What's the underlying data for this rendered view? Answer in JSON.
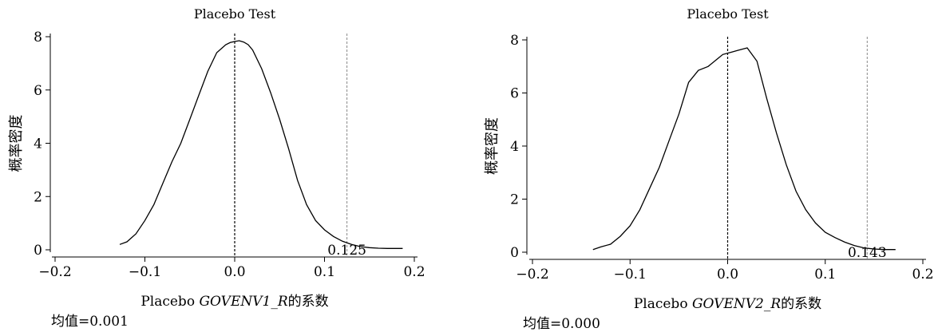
{
  "chart_data": [
    {
      "type": "line",
      "title": "Placebo Test",
      "xlabel_prefix": "Placebo ",
      "xlabel_var": "GOVENV1_R",
      "xlabel_suffix": "的系数",
      "ylabel": "概率密度",
      "xlim": [
        -0.2,
        0.2
      ],
      "ylim": [
        0,
        8
      ],
      "xticks": [
        -0.2,
        -0.1,
        0.0,
        0.1,
        0.2
      ],
      "xtick_labels": [
        "−0.2",
        "−0.1",
        "0.0",
        "0.1",
        "0.2"
      ],
      "yticks": [
        0,
        2,
        4,
        6,
        8
      ],
      "ytick_labels": [
        "0",
        "2",
        "4",
        "6",
        "8"
      ],
      "reference_zero": 0.0,
      "actual_coef": 0.125,
      "actual_label": "0.125",
      "mean_text": "均值=0.001",
      "series": [
        {
          "x": [
            -0.128,
            -0.12,
            -0.11,
            -0.1,
            -0.09,
            -0.08,
            -0.07,
            -0.06,
            -0.05,
            -0.04,
            -0.03,
            -0.02,
            -0.01,
            -0.005,
            0.0,
            0.005,
            0.01,
            0.015,
            0.02,
            0.03,
            0.04,
            0.05,
            0.06,
            0.07,
            0.08,
            0.09,
            0.1,
            0.11,
            0.12,
            0.13,
            0.14,
            0.15,
            0.16,
            0.17,
            0.18,
            0.187
          ],
          "y": [
            0.2,
            0.3,
            0.6,
            1.1,
            1.7,
            2.5,
            3.3,
            4.0,
            4.9,
            5.8,
            6.7,
            7.4,
            7.7,
            7.78,
            7.82,
            7.85,
            7.8,
            7.7,
            7.5,
            6.8,
            5.9,
            4.9,
            3.8,
            2.6,
            1.7,
            1.1,
            0.75,
            0.5,
            0.32,
            0.2,
            0.12,
            0.08,
            0.06,
            0.05,
            0.05,
            0.05
          ]
        }
      ]
    },
    {
      "type": "line",
      "title": "Placebo Test",
      "xlabel_prefix": "Placebo ",
      "xlabel_var": "GOVENV2_R",
      "xlabel_suffix": "的系数",
      "ylabel": "概率密度",
      "xlim": [
        -0.2,
        0.2
      ],
      "ylim": [
        0,
        8
      ],
      "xticks": [
        -0.2,
        -0.1,
        0.0,
        0.1,
        0.2
      ],
      "xtick_labels": [
        "−0.2",
        "−0.1",
        "0.0",
        "0.1",
        "0.2"
      ],
      "yticks": [
        0,
        2,
        4,
        6,
        8
      ],
      "ytick_labels": [
        "0",
        "2",
        "4",
        "6",
        "8"
      ],
      "reference_zero": 0.0,
      "actual_coef": 0.143,
      "actual_label": "0.143",
      "mean_text": "均值=0.000",
      "series": [
        {
          "x": [
            -0.138,
            -0.13,
            -0.12,
            -0.11,
            -0.1,
            -0.09,
            -0.08,
            -0.07,
            -0.06,
            -0.05,
            -0.045,
            -0.04,
            -0.03,
            -0.02,
            -0.01,
            -0.005,
            0.0,
            0.005,
            0.01,
            0.015,
            0.02,
            0.03,
            0.04,
            0.05,
            0.06,
            0.07,
            0.08,
            0.09,
            0.1,
            0.11,
            0.12,
            0.13,
            0.14,
            0.15,
            0.16,
            0.172
          ],
          "y": [
            0.1,
            0.2,
            0.3,
            0.6,
            1.0,
            1.6,
            2.4,
            3.2,
            4.2,
            5.2,
            5.8,
            6.4,
            6.85,
            7.0,
            7.3,
            7.45,
            7.5,
            7.55,
            7.6,
            7.65,
            7.7,
            7.2,
            5.8,
            4.5,
            3.3,
            2.3,
            1.6,
            1.1,
            0.75,
            0.55,
            0.38,
            0.25,
            0.16,
            0.12,
            0.1,
            0.1
          ]
        }
      ]
    }
  ]
}
